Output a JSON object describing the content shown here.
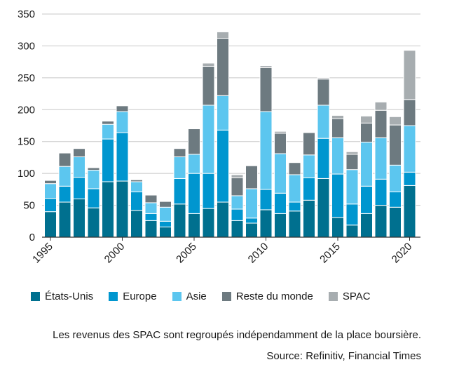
{
  "chart_data": {
    "type": "bar",
    "stacked": true,
    "categories": [
      "1995",
      "1996",
      "1997",
      "1998",
      "1999",
      "2000",
      "2001",
      "2002",
      "2003",
      "2004",
      "2005",
      "2006",
      "2007",
      "2008",
      "2009",
      "2010",
      "2011",
      "2012",
      "2013",
      "2014",
      "2015",
      "2016",
      "2017",
      "2018",
      "2019",
      "2020"
    ],
    "x_tick_labels": [
      "1995",
      "2000",
      "2005",
      "2010",
      "2015",
      "2020"
    ],
    "ylim": [
      0,
      350
    ],
    "y_ticks": [
      0,
      50,
      100,
      150,
      200,
      250,
      300,
      350
    ],
    "grid": "horizontal",
    "legend_position": "bottom",
    "series": [
      {
        "name": "États-Unis",
        "color": "#00708f",
        "values": [
          40,
          55,
          60,
          46,
          87,
          88,
          42,
          26,
          16,
          52,
          37,
          45,
          55,
          26,
          22,
          43,
          37,
          41,
          58,
          92,
          31,
          19,
          37,
          50,
          47,
          81
        ]
      },
      {
        "name": "Europe",
        "color": "#0096cf",
        "values": [
          21,
          25,
          34,
          30,
          67,
          76,
          29,
          11,
          9,
          40,
          63,
          55,
          113,
          18,
          8,
          32,
          32,
          14,
          35,
          63,
          68,
          33,
          43,
          41,
          24,
          21
        ]
      },
      {
        "name": "Asie",
        "color": "#5cc6ef",
        "values": [
          23,
          31,
          32,
          29,
          23,
          33,
          16,
          17,
          22,
          34,
          30,
          107,
          54,
          21,
          46,
          122,
          62,
          43,
          36,
          52,
          57,
          54,
          69,
          65,
          42,
          73
        ]
      },
      {
        "name": "Reste du monde",
        "color": "#6d7a80",
        "values": [
          5,
          21,
          13,
          4,
          5,
          9,
          3,
          12,
          9,
          13,
          40,
          61,
          90,
          28,
          36,
          69,
          32,
          19,
          35,
          41,
          30,
          24,
          30,
          43,
          63,
          41
        ]
      },
      {
        "name": "SPAC",
        "color": "#a7adb0",
        "values": [
          0,
          0,
          0,
          0,
          0,
          0,
          0,
          0,
          0,
          0,
          0,
          5,
          10,
          5,
          0,
          3,
          3,
          0,
          0,
          2,
          5,
          4,
          11,
          13,
          13,
          77
        ]
      }
    ]
  },
  "note": "Les revenus des SPAC sont regroupés indépendamment de la place boursière.",
  "source": "Source: Refinitiv, Financial Times"
}
